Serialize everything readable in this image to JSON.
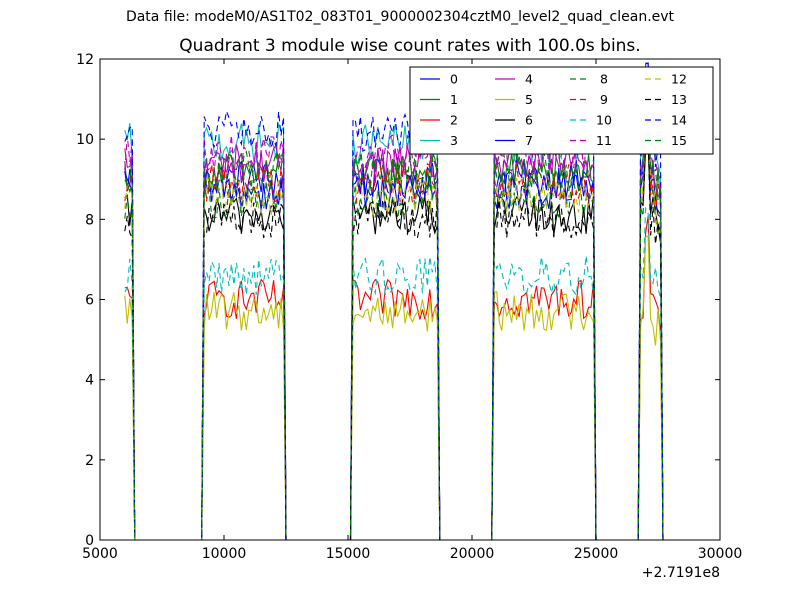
{
  "figure": {
    "suptitle": "Data file: modeM0/AS1T02_083T01_9000002304cztM0_level2_quad_clean.evt"
  },
  "chart_data": {
    "type": "line",
    "title": "Quadrant 3 module wise count rates with 100.0s bins.",
    "xlabel": "",
    "ylabel": "",
    "x_offset_label": "+2.7191e8",
    "xlim": [
      5000,
      30000
    ],
    "ylim": [
      0,
      12
    ],
    "xticks": [
      5000,
      10000,
      15000,
      20000,
      25000,
      30000
    ],
    "yticks": [
      0,
      2,
      4,
      6,
      8,
      10,
      12
    ],
    "grid": false,
    "legend_position": "top-right",
    "legend_columns": 4,
    "on_segments": [
      [
        6000,
        6300
      ],
      [
        9200,
        12400
      ],
      [
        15200,
        18600
      ],
      [
        20900,
        24900
      ],
      [
        26800,
        27600
      ]
    ],
    "series": [
      {
        "name": "0",
        "color": "#0000ff",
        "style": "solid",
        "level": 9.0
      },
      {
        "name": "1",
        "color": "#008000",
        "style": "solid",
        "level": 9.2
      },
      {
        "name": "2",
        "color": "#ff0000",
        "style": "solid",
        "level": 6.0
      },
      {
        "name": "3",
        "color": "#00bfbf",
        "style": "solid",
        "level": 9.9
      },
      {
        "name": "4",
        "color": "#bf00bf",
        "style": "solid",
        "level": 9.4
      },
      {
        "name": "5",
        "color": "#bfbf00",
        "style": "solid",
        "level": 5.7
      },
      {
        "name": "6",
        "color": "#000000",
        "style": "solid",
        "level": 8.1
      },
      {
        "name": "7",
        "color": "#0000ff",
        "style": "solid",
        "level": 8.7
      },
      {
        "name": "8",
        "color": "#008000",
        "style": "dashed",
        "level": 8.5
      },
      {
        "name": "9",
        "color": "#ff0000",
        "style": "dashed",
        "level": 8.9
      },
      {
        "name": "10",
        "color": "#00bfbf",
        "style": "dashed",
        "level": 6.6
      },
      {
        "name": "11",
        "color": "#bf00bf",
        "style": "dashed",
        "level": 9.6
      },
      {
        "name": "12",
        "color": "#bfbf00",
        "style": "dashed",
        "level": 8.6
      },
      {
        "name": "13",
        "color": "#000000",
        "style": "dashed",
        "level": 8.0
      },
      {
        "name": "14",
        "color": "#0000ff",
        "style": "dashed",
        "level": 10.2
      },
      {
        "name": "15",
        "color": "#008000",
        "style": "dashed",
        "level": 9.2
      }
    ]
  }
}
